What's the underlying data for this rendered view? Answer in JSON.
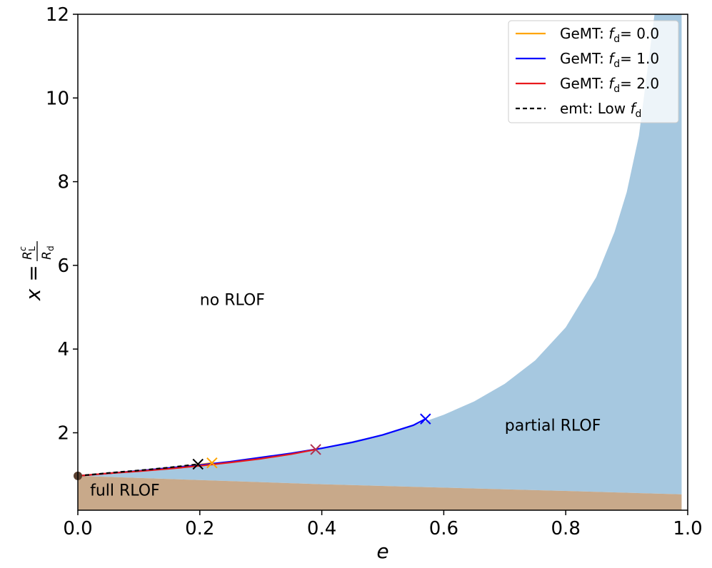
{
  "chart_data": {
    "type": "line",
    "xlabel": "e",
    "ylabel": "x = R_L^c / R_d",
    "ylabel_parts": {
      "x": "x",
      "eq": "=",
      "num_R": "R",
      "num_sub": "L",
      "num_sup": "c",
      "den_R": "R",
      "den_sub": "d"
    },
    "xlim": [
      0.0,
      1.0
    ],
    "ylim": [
      0.15,
      12.0
    ],
    "xticks": [
      0.0,
      0.2,
      0.4,
      0.6,
      0.8,
      1.0
    ],
    "xtick_labels": [
      "0.0",
      "0.2",
      "0.4",
      "0.6",
      "0.8",
      "1.0"
    ],
    "yticks": [
      2,
      4,
      6,
      8,
      10,
      12
    ],
    "ytick_labels": [
      "2",
      "4",
      "6",
      "8",
      "10",
      "12"
    ],
    "grid": false,
    "legend_position": "top-right",
    "regions": [
      {
        "label": "no RLOF",
        "label_at": [
          0.2,
          5.05
        ]
      },
      {
        "label": "partial RLOF",
        "label_at": [
          0.7,
          2.05
        ],
        "color": "#a6c8e0",
        "upper_boundary": {
          "e": [
            0.0,
            0.1,
            0.2,
            0.3,
            0.4,
            0.5,
            0.55,
            0.6,
            0.65,
            0.7,
            0.75,
            0.8,
            0.85,
            0.88,
            0.9,
            0.92,
            0.95,
            0.99
          ],
          "x": [
            0.97,
            1.09,
            1.23,
            1.41,
            1.64,
            1.96,
            2.17,
            2.43,
            2.75,
            3.17,
            3.73,
            4.52,
            5.72,
            6.8,
            7.75,
            9.1,
            12.5,
            22.0
          ]
        }
      },
      {
        "label": "full RLOF",
        "label_at": [
          0.02,
          0.5
        ],
        "color": "#c8a98a",
        "upper_boundary": {
          "e": [
            0.0,
            0.2,
            0.4,
            0.6,
            0.8,
            0.99
          ],
          "x": [
            0.97,
            0.87,
            0.77,
            0.69,
            0.61,
            0.53
          ]
        }
      }
    ],
    "series": [
      {
        "name": "GeMT: ",
        "name_symbol": "f",
        "name_sub": "d",
        "name_value": "= 0.0",
        "color": "#ffa500",
        "x": [
          0.0,
          0.05,
          0.1,
          0.15,
          0.2,
          0.22
        ],
        "y": [
          0.97,
          1.03,
          1.09,
          1.16,
          1.24,
          1.28
        ],
        "end_marker": [
          0.22,
          1.28
        ]
      },
      {
        "name": "GeMT: ",
        "name_symbol": "f",
        "name_sub": "d",
        "name_value": "= 1.0",
        "color": "#0000ff",
        "x": [
          0.0,
          0.05,
          0.1,
          0.15,
          0.2,
          0.25,
          0.3,
          0.35,
          0.4,
          0.45,
          0.5,
          0.55,
          0.57
        ],
        "y": [
          0.97,
          1.03,
          1.09,
          1.16,
          1.23,
          1.31,
          1.41,
          1.51,
          1.63,
          1.77,
          1.95,
          2.18,
          2.33
        ],
        "end_marker": [
          0.57,
          2.33
        ]
      },
      {
        "name": "GeMT: ",
        "name_symbol": "f",
        "name_sub": "d",
        "name_value": "= 2.0",
        "color": "#e8191c",
        "x": [
          0.0,
          0.05,
          0.1,
          0.15,
          0.2,
          0.25,
          0.3,
          0.35,
          0.39
        ],
        "y": [
          0.97,
          1.03,
          1.08,
          1.14,
          1.21,
          1.29,
          1.38,
          1.49,
          1.6
        ],
        "end_marker": [
          0.39,
          1.6
        ]
      },
      {
        "name": "emt: Low ",
        "name_symbol": "f",
        "name_sub": "d",
        "name_value": "",
        "color": "#000000",
        "dashed": true,
        "x": [
          0.0,
          0.05,
          0.1,
          0.15,
          0.197
        ],
        "y": [
          0.97,
          1.04,
          1.1,
          1.17,
          1.25
        ],
        "end_marker": [
          0.197,
          1.25
        ]
      }
    ],
    "start_point": {
      "x": 0.0,
      "y": 0.97
    }
  }
}
